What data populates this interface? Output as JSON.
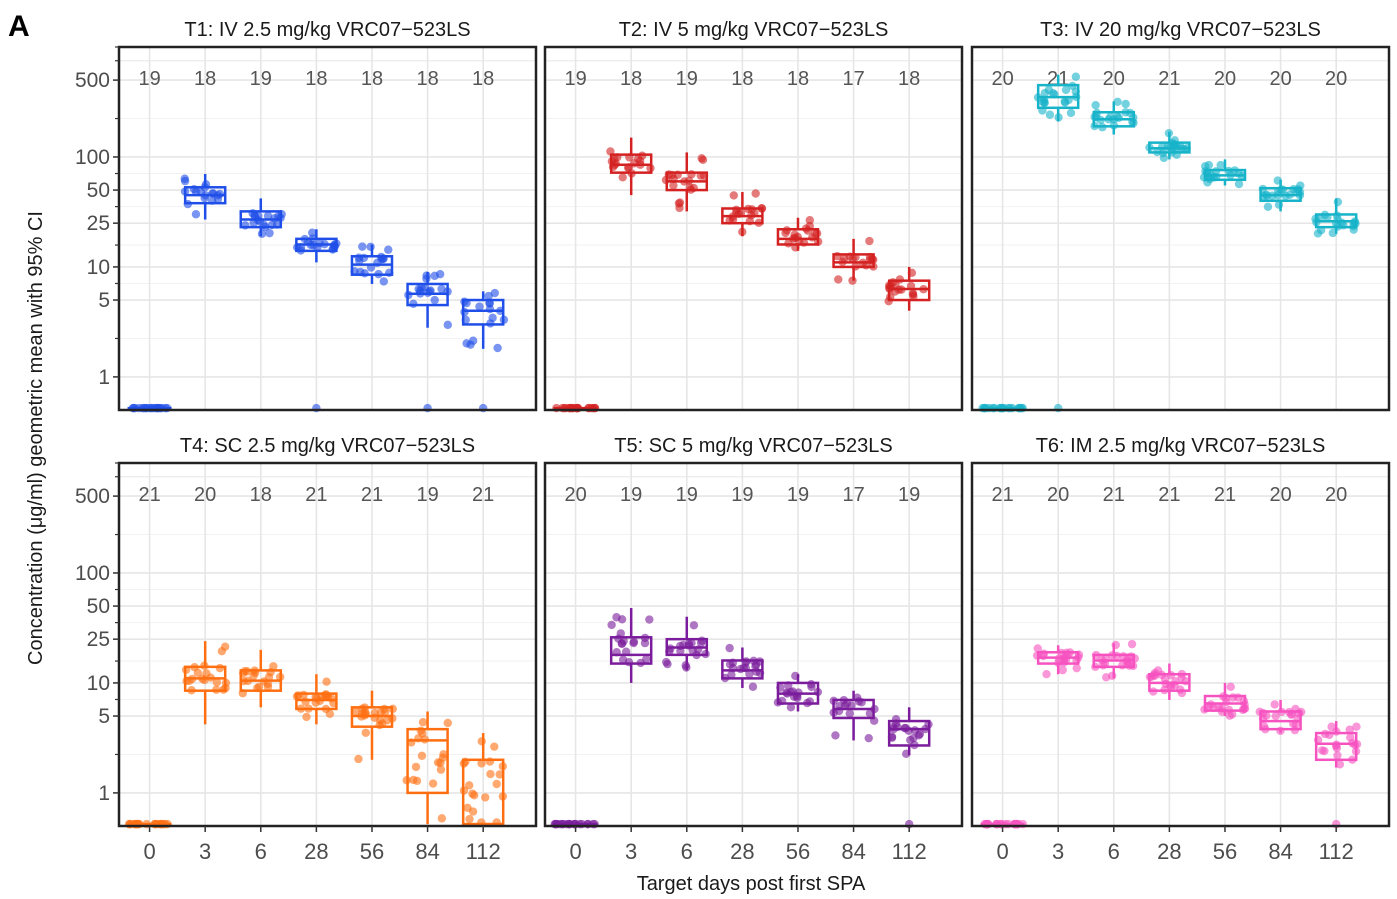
{
  "figure": {
    "panel_letter": "A",
    "xlabel": "Target days post first SPA",
    "ylabel": "Concentration (μg/ml) geometric mean with 95% CI"
  },
  "chart_data": {
    "type": "box",
    "y_scale": "log10",
    "ylim": [
      0.5,
      1000
    ],
    "y_tick_labels": [
      "1",
      "5",
      "10",
      "25",
      "50",
      "100",
      "500"
    ],
    "y_ticks": [
      1,
      5,
      10,
      25,
      50,
      100,
      500
    ],
    "categories": [
      "0",
      "3",
      "6",
      "28",
      "56",
      "84",
      "112"
    ],
    "grid": true,
    "legend": "none",
    "panels": [
      {
        "title": "T1: IV 2.5 mg/kg VRC07−523LS",
        "color": "#1f4fe8",
        "n": [
          "19",
          "18",
          "19",
          "18",
          "18",
          "18",
          "18"
        ],
        "boxes": [
          {
            "low": 0.52,
            "q1": 0.52,
            "median": 0.52,
            "q3": 0.52,
            "high": 0.52
          },
          {
            "low": 27,
            "q1": 38,
            "median": 45,
            "q3": 53,
            "high": 70
          },
          {
            "low": 19,
            "q1": 23,
            "median": 27,
            "q3": 32,
            "high": 42
          },
          {
            "low": 11,
            "q1": 14,
            "median": 16,
            "q3": 18,
            "high": 22
          },
          {
            "low": 7,
            "q1": 8.5,
            "median": 10.5,
            "q3": 12.5,
            "high": 16
          },
          {
            "low": 2.8,
            "q1": 4.5,
            "median": 5.7,
            "q3": 7,
            "high": 9
          },
          {
            "low": 1.8,
            "q1": 3,
            "median": 4,
            "q3": 5,
            "high": 6
          }
        ],
        "outliers": [
          {
            "category": "28",
            "y": 0.52
          },
          {
            "category": "84",
            "y": 0.52
          },
          {
            "category": "112",
            "y": 0.52
          }
        ]
      },
      {
        "title": "T2: IV 5 mg/kg VRC07−523LS",
        "color": "#d42121",
        "n": [
          "19",
          "18",
          "19",
          "18",
          "18",
          "17",
          "18"
        ],
        "boxes": [
          {
            "low": 0.52,
            "q1": 0.52,
            "median": 0.52,
            "q3": 0.52,
            "high": 0.52
          },
          {
            "low": 45,
            "q1": 72,
            "median": 85,
            "q3": 105,
            "high": 150
          },
          {
            "low": 32,
            "q1": 50,
            "median": 60,
            "q3": 72,
            "high": 110
          },
          {
            "low": 19,
            "q1": 25,
            "median": 29,
            "q3": 34,
            "high": 48
          },
          {
            "low": 14,
            "q1": 16,
            "median": 18,
            "q3": 22,
            "high": 28
          },
          {
            "low": 7.5,
            "q1": 10,
            "median": 11,
            "q3": 13,
            "high": 18
          },
          {
            "low": 4,
            "q1": 5,
            "median": 6.3,
            "q3": 7.5,
            "high": 10
          }
        ],
        "outliers": []
      },
      {
        "title": "T3: IV 20 mg/kg VRC07−523LS",
        "color": "#17b3c9",
        "n": [
          "20",
          "21",
          "20",
          "21",
          "20",
          "20",
          "20"
        ],
        "boxes": [
          {
            "low": 0.52,
            "q1": 0.52,
            "median": 0.52,
            "q3": 0.52,
            "high": 0.52
          },
          {
            "low": 210,
            "q1": 280,
            "median": 350,
            "q3": 450,
            "high": 560
          },
          {
            "low": 160,
            "q1": 190,
            "median": 220,
            "q3": 255,
            "high": 320
          },
          {
            "low": 95,
            "q1": 110,
            "median": 120,
            "q3": 135,
            "high": 170
          },
          {
            "low": 55,
            "q1": 62,
            "median": 68,
            "q3": 76,
            "high": 95
          },
          {
            "low": 32,
            "q1": 40,
            "median": 45,
            "q3": 52,
            "high": 62
          },
          {
            "low": 20,
            "q1": 23,
            "median": 26,
            "q3": 30,
            "high": 42
          }
        ],
        "outliers": [
          {
            "category": "3",
            "y": 0.52
          }
        ]
      },
      {
        "title": "T4: SC 2.5 mg/kg VRC07−523LS",
        "color": "#ff6f12",
        "n": [
          "21",
          "20",
          "18",
          "21",
          "21",
          "19",
          "21"
        ],
        "boxes": [
          {
            "low": 0.52,
            "q1": 0.52,
            "median": 0.52,
            "q3": 0.52,
            "high": 0.52
          },
          {
            "low": 4.2,
            "q1": 8.5,
            "median": 11,
            "q3": 14,
            "high": 24
          },
          {
            "low": 6,
            "q1": 8.5,
            "median": 10.5,
            "q3": 13,
            "high": 20
          },
          {
            "low": 4.2,
            "q1": 5.8,
            "median": 7,
            "q3": 8,
            "high": 12
          },
          {
            "low": 2,
            "q1": 4,
            "median": 5,
            "q3": 6,
            "high": 8.5
          },
          {
            "low": 0.52,
            "q1": 1,
            "median": 3,
            "q3": 3.8,
            "high": 5.5
          },
          {
            "low": 0.52,
            "q1": 0.52,
            "median": 0.52,
            "q3": 2,
            "high": 3.5
          }
        ],
        "outliers": []
      },
      {
        "title": "T5: SC 5 mg/kg VRC07−523LS",
        "color": "#7a1c9b",
        "n": [
          "20",
          "19",
          "19",
          "19",
          "19",
          "17",
          "19"
        ],
        "boxes": [
          {
            "low": 0.52,
            "q1": 0.52,
            "median": 0.52,
            "q3": 0.52,
            "high": 0.52
          },
          {
            "low": 10,
            "q1": 15,
            "median": 18,
            "q3": 26,
            "high": 48
          },
          {
            "low": 13,
            "q1": 18,
            "median": 21,
            "q3": 25,
            "high": 40
          },
          {
            "low": 9,
            "q1": 11,
            "median": 13,
            "q3": 16,
            "high": 21
          },
          {
            "low": 5.5,
            "q1": 6.5,
            "median": 8,
            "q3": 10,
            "high": 12
          },
          {
            "low": 3,
            "q1": 4.8,
            "median": 5.8,
            "q3": 7,
            "high": 8.5
          },
          {
            "low": 2.2,
            "q1": 2.7,
            "median": 3.8,
            "q3": 4.5,
            "high": 6
          }
        ],
        "outliers": [
          {
            "category": "112",
            "y": 0.52
          }
        ]
      },
      {
        "title": "T6: IM 2.5 mg/kg VRC07−523LS",
        "color": "#f652c0",
        "n": [
          "21",
          "20",
          "21",
          "21",
          "21",
          "20",
          "20"
        ],
        "boxes": [
          {
            "low": 0.52,
            "q1": 0.52,
            "median": 0.52,
            "q3": 0.52,
            "high": 0.52
          },
          {
            "low": 12,
            "q1": 15,
            "median": 17,
            "q3": 19,
            "high": 22
          },
          {
            "low": 11,
            "q1": 14,
            "median": 16,
            "q3": 18,
            "high": 23
          },
          {
            "low": 7,
            "q1": 8.5,
            "median": 10,
            "q3": 12,
            "high": 15
          },
          {
            "low": 5,
            "q1": 5.6,
            "median": 6.5,
            "q3": 7.6,
            "high": 10
          },
          {
            "low": 3.5,
            "q1": 3.8,
            "median": 4.5,
            "q3": 5.5,
            "high": 7
          },
          {
            "low": 1.7,
            "q1": 2,
            "median": 2.8,
            "q3": 3.5,
            "high": 4.5
          }
        ],
        "outliers": [
          {
            "category": "112",
            "y": 0.52
          }
        ]
      }
    ]
  }
}
